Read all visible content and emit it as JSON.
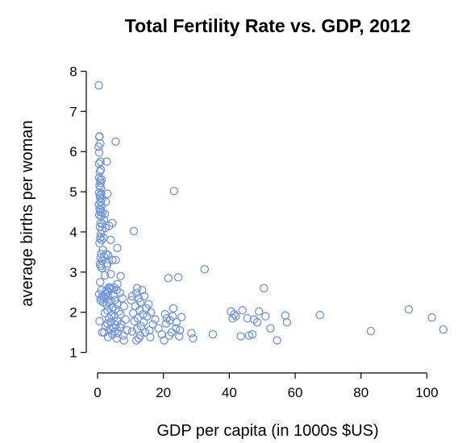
{
  "chart_data": {
    "type": "scatter",
    "title": "Total Fertility Rate vs. GDP, 2012",
    "xlabel": "GDP per capita (in 1000s $US)",
    "ylabel": "average births per woman",
    "xlim": [
      0,
      107
    ],
    "ylim": [
      0.65,
      8.35
    ],
    "xticks": [
      0,
      20,
      40,
      60,
      80,
      100
    ],
    "yticks": [
      1,
      2,
      3,
      4,
      5,
      6,
      7,
      8
    ],
    "point_color": "#6f95e0",
    "grid": false,
    "legend": "none",
    "series": [
      {
        "x": [
          0.4,
          0.6,
          0.5,
          0.8,
          0.3,
          0.5,
          0.9,
          0.4,
          1.0,
          0.7,
          0.5,
          0.8,
          1.2,
          0.9,
          0.6,
          1.0,
          0.5,
          1.1,
          0.7,
          0.8,
          1.3,
          0.9,
          0.4,
          1.2,
          0.6,
          1.0,
          0.8,
          1.4,
          0.5,
          1.1,
          0.9,
          1.5,
          0.7,
          1.3,
          1.0,
          0.8,
          1.2,
          0.6,
          1.6,
          1.1,
          0.9,
          1.4,
          0.7,
          1.0,
          1.3,
          0.8,
          1.2,
          0.5,
          1.5,
          0.9,
          1.1,
          1.7,
          0.6,
          1.4
        ],
        "y": [
          7.65,
          6.38,
          6.37,
          6.2,
          6.12,
          5.98,
          5.75,
          5.7,
          5.55,
          5.5,
          5.35,
          5.28,
          5.3,
          5.22,
          5.15,
          5.1,
          4.98,
          4.95,
          4.9,
          4.85,
          4.82,
          4.75,
          4.68,
          4.65,
          4.58,
          4.55,
          4.5,
          4.48,
          4.42,
          4.4,
          4.22,
          4.2,
          4.12,
          4.05,
          3.95,
          3.85,
          3.8,
          3.72,
          3.55,
          3.45,
          3.35,
          3.28,
          3.2,
          3.15,
          3.1,
          2.75,
          2.55,
          2.45,
          2.4,
          2.3,
          2.35,
          2.25,
          1.78,
          1.5
        ]
      },
      {
        "x": [
          5.5,
          2.8,
          3.0,
          2.5,
          2.2,
          2.0,
          4.5,
          3.5,
          2.4,
          1.8,
          6.0,
          4.0,
          2.6,
          3.2,
          2.0,
          5.5,
          4.5,
          3.0,
          2.8,
          7.0,
          4.0,
          2.2,
          6.0,
          3.5,
          5.0,
          3.8,
          2.7,
          4.2,
          5.8,
          3.0,
          2.5,
          6.8,
          4.8,
          3.2,
          2.0,
          7.5,
          5.2,
          4.0,
          3.5,
          6.0,
          2.8,
          8.0,
          4.5,
          5.5,
          3.0,
          6.5,
          2.2,
          7.0,
          4.2,
          5.0,
          3.5,
          8.5,
          6.0,
          4.0,
          3.0,
          7.2,
          5.5,
          2.5,
          6.8,
          4.8,
          3.8,
          9.0,
          5.2,
          2.0,
          6.2,
          4.5,
          7.8,
          3.2,
          5.8,
          8.0
        ],
        "y": [
          6.25,
          5.75,
          4.95,
          4.75,
          4.45,
          4.3,
          4.22,
          4.15,
          4.1,
          3.85,
          3.6,
          3.8,
          3.45,
          3.42,
          3.38,
          3.3,
          3.3,
          3.22,
          3.15,
          2.9,
          2.95,
          2.92,
          2.7,
          2.62,
          2.62,
          2.6,
          2.55,
          2.58,
          2.55,
          2.5,
          2.45,
          2.48,
          2.42,
          2.4,
          2.38,
          2.35,
          2.3,
          2.28,
          2.25,
          2.2,
          2.18,
          2.15,
          2.12,
          2.08,
          2.05,
          2.02,
          1.98,
          1.95,
          1.92,
          1.88,
          1.85,
          1.82,
          1.78,
          1.75,
          1.72,
          1.7,
          1.68,
          1.65,
          1.62,
          1.6,
          1.58,
          1.55,
          1.52,
          1.5,
          1.48,
          1.45,
          1.42,
          1.38,
          1.35,
          1.3
        ]
      },
      {
        "x": [
          11.0,
          10.5,
          12.0,
          13.5,
          11.8,
          14.2,
          12.5,
          10.2,
          13.0,
          15.5,
          11.5,
          14.8,
          12.8,
          16.2,
          10.8,
          13.8,
          15.0,
          12.2,
          17.5,
          11.2,
          14.0,
          16.8,
          13.2,
          18.5,
          12.0,
          15.8,
          10.5,
          14.5,
          19.5,
          13.0,
          16.0,
          12.5,
          11.8
        ],
        "y": [
          4.02,
          2.4,
          2.6,
          2.55,
          2.48,
          2.4,
          2.35,
          2.3,
          2.25,
          2.2,
          2.15,
          2.1,
          2.05,
          2.0,
          1.98,
          1.95,
          1.9,
          1.85,
          1.82,
          1.78,
          1.75,
          1.7,
          1.65,
          1.6,
          1.58,
          1.55,
          1.52,
          1.5,
          1.45,
          1.42,
          1.38,
          1.35,
          1.3
        ]
      },
      {
        "x": [
          23.2,
          32.5,
          21.5,
          24.5,
          23.0,
          20.5,
          22.8,
          25.5,
          21.0,
          22.0,
          24.0,
          20.8,
          23.8,
          25.0,
          22.5,
          28.5,
          21.8,
          24.8,
          29.0,
          20.2,
          35.0
        ],
        "y": [
          5.02,
          3.07,
          2.85,
          2.87,
          2.1,
          1.95,
          1.9,
          1.88,
          1.85,
          1.8,
          1.75,
          1.72,
          1.6,
          1.55,
          1.5,
          1.48,
          1.42,
          1.4,
          1.35,
          1.3,
          1.45
        ]
      },
      {
        "x": [
          40.5,
          44.0,
          41.5,
          42.0,
          49.0,
          50.5,
          45.5,
          47.5,
          48.5,
          52.5,
          43.5,
          47.0,
          46.0,
          54.5,
          51.0,
          57.0,
          57.5,
          67.5,
          83.0,
          94.5,
          101.5,
          105.0,
          41.0
        ],
        "y": [
          2.02,
          2.05,
          1.95,
          1.9,
          2.02,
          2.6,
          1.85,
          1.82,
          1.75,
          1.6,
          1.4,
          1.45,
          1.42,
          1.3,
          1.9,
          1.92,
          1.75,
          1.93,
          1.53,
          2.07,
          1.87,
          1.57,
          1.85
        ]
      }
    ]
  }
}
